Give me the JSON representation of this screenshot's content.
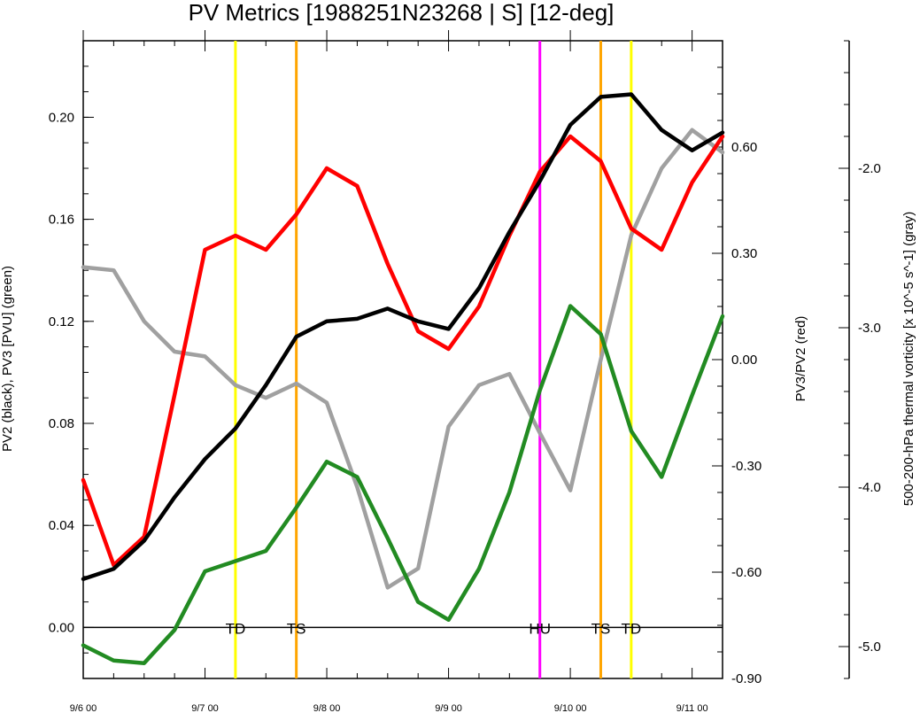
{
  "chart_data": {
    "type": "line",
    "title": "PV Metrics [1988251N23268 | S] [12-deg]",
    "x_ticks": [
      "9/6 00",
      "9/7 00",
      "9/8 00",
      "9/9 00",
      "9/10 00",
      "9/11 00"
    ],
    "x": [
      0,
      0.25,
      0.5,
      0.75,
      1,
      1.25,
      1.5,
      1.75,
      2,
      2.25,
      2.5,
      2.75,
      3,
      3.25,
      3.5,
      3.75,
      4,
      4.25,
      4.5,
      4.75,
      5,
      5.25
    ],
    "x_note": "days after 9/6 00",
    "axes": {
      "left": {
        "label": "PV2 (black), PV3 [PVU] (green)",
        "ylim": [
          -0.02,
          0.23
        ],
        "ticks": [
          "0.00",
          "0.04",
          "0.08",
          "0.12",
          "0.16",
          "0.20"
        ]
      },
      "right": {
        "label": "PV3/PV2 (red)",
        "ylim": [
          -0.9,
          0.9
        ],
        "ticks": [
          "-0.90",
          "-0.60",
          "-0.30",
          "0.00",
          "0.30",
          "0.60"
        ]
      },
      "far_right": {
        "label": "500-200-hPa thermal vorticity [x 10^-5 s^-1] (gray)",
        "ylim": [
          -5.2,
          -1.2
        ],
        "ticks": [
          "-5.0",
          "-4.0",
          "-3.0",
          "-2.0"
        ]
      }
    },
    "series": [
      {
        "name": "PV2",
        "axis": "left",
        "color": "#000000",
        "values": [
          0.019,
          0.023,
          0.034,
          0.051,
          0.066,
          0.078,
          0.095,
          0.114,
          0.12,
          0.121,
          0.125,
          0.12,
          0.117,
          0.133,
          0.155,
          0.175,
          0.197,
          0.208,
          0.209,
          0.195,
          0.187,
          0.194
        ]
      },
      {
        "name": "PV3",
        "axis": "left",
        "color": "#228b22",
        "values": [
          -0.007,
          -0.013,
          -0.014,
          -0.001,
          0.022,
          0.026,
          0.03,
          0.047,
          0.065,
          0.059,
          0.035,
          0.01,
          0.003,
          0.023,
          0.053,
          0.093,
          0.126,
          0.115,
          0.077,
          0.059,
          0.091,
          0.122
        ]
      },
      {
        "name": "PV3/PV2",
        "axis": "right",
        "color": "#ff0000",
        "values": [
          -0.34,
          -0.58,
          -0.5,
          -0.1,
          0.31,
          0.35,
          0.31,
          0.41,
          0.54,
          0.49,
          0.27,
          0.08,
          0.03,
          0.15,
          0.35,
          0.53,
          0.63,
          0.56,
          0.37,
          0.31,
          0.5,
          0.63
        ]
      },
      {
        "name": "thermal vorticity",
        "axis": "far_right",
        "color": "#a0a0a0",
        "values": [
          -2.62,
          -2.64,
          -2.96,
          -3.15,
          -3.18,
          -3.36,
          -3.44,
          -3.35,
          -3.47,
          -4.0,
          -4.63,
          -4.51,
          -3.62,
          -3.36,
          -3.29,
          -3.66,
          -4.02,
          -3.2,
          -2.42,
          -2.0,
          -1.76,
          -1.9
        ]
      }
    ],
    "reference_line": {
      "axis": "left",
      "value": 0.0,
      "color": "#000000"
    },
    "events": [
      {
        "label": "TD",
        "x": 1.25,
        "color": "#ffff00"
      },
      {
        "label": "TS",
        "x": 1.75,
        "color": "#ffa500"
      },
      {
        "label": "HU",
        "x": 3.75,
        "color": "#ff00ff"
      },
      {
        "label": "TS",
        "x": 4.25,
        "color": "#ffa500"
      },
      {
        "label": "TD",
        "x": 4.5,
        "color": "#ffff00"
      }
    ],
    "xlim": [
      0,
      5.25
    ],
    "grid": false,
    "legend": "none"
  }
}
